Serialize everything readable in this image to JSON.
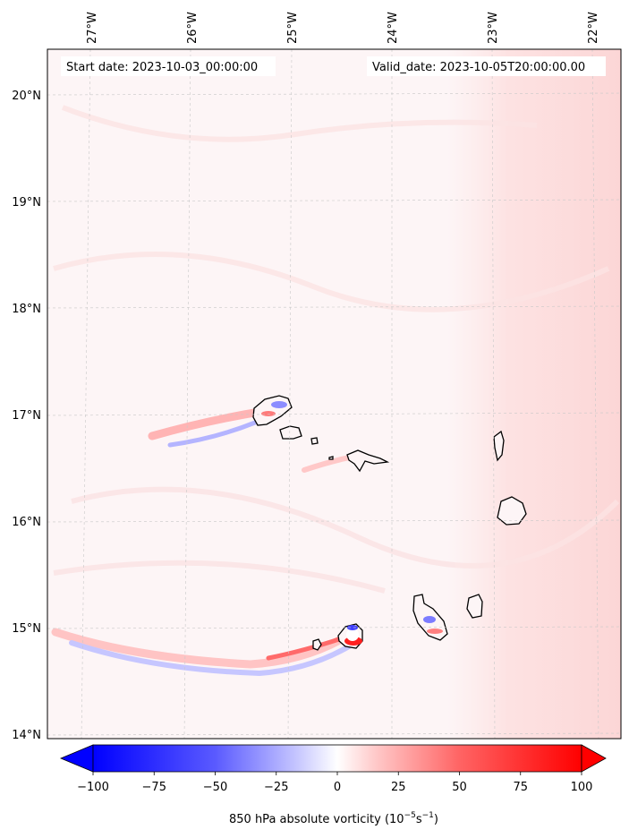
{
  "map": {
    "start_label": "Start date: 2023-10-03_00:00:00",
    "valid_label": "Valid_date: 2023-10-05T20:00:00.00",
    "lon_ticks": [
      "27°W",
      "26°W",
      "25°W",
      "24°W",
      "23°W",
      "22°W"
    ],
    "lat_ticks": [
      "20°N",
      "19°N",
      "18°N",
      "17°N",
      "16°N",
      "15°N",
      "14°N"
    ],
    "colorbar": {
      "ticks": [
        "−100",
        "−75",
        "−50",
        "−25",
        "0",
        "25",
        "50",
        "75",
        "100"
      ],
      "title": "850 hPa absolute vorticity (10",
      "title_exp1": "−5",
      "title_mid": "s",
      "title_exp2": "−1",
      "title_end": ")",
      "range": [
        -100,
        100
      ],
      "colors": {
        "min": "#0000ff",
        "mid": "#ffffff",
        "max": "#ff0000"
      }
    },
    "field_colors": {
      "background": "#fdf5f6",
      "east_tint": "#fde0e0"
    }
  }
}
